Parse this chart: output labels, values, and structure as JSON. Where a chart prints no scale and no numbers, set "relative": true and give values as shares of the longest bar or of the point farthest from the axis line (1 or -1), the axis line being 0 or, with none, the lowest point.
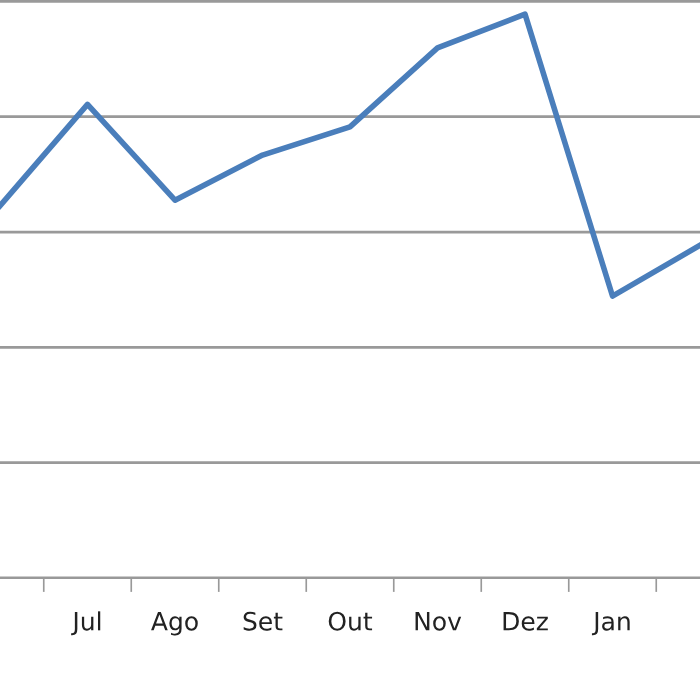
{
  "chart_data": {
    "type": "line",
    "relative": true,
    "grid": "y",
    "categories": [
      null,
      "Jul",
      "Ago",
      "Set",
      "Out",
      "Nov",
      "Dez",
      "Jan",
      null
    ],
    "series": [
      {
        "color": "#4a7ebb",
        "values": [
          0.66,
          0.84,
          0.67,
          0.75,
          0.8,
          0.94,
          1,
          0.5,
          0.59
        ]
      }
    ]
  }
}
